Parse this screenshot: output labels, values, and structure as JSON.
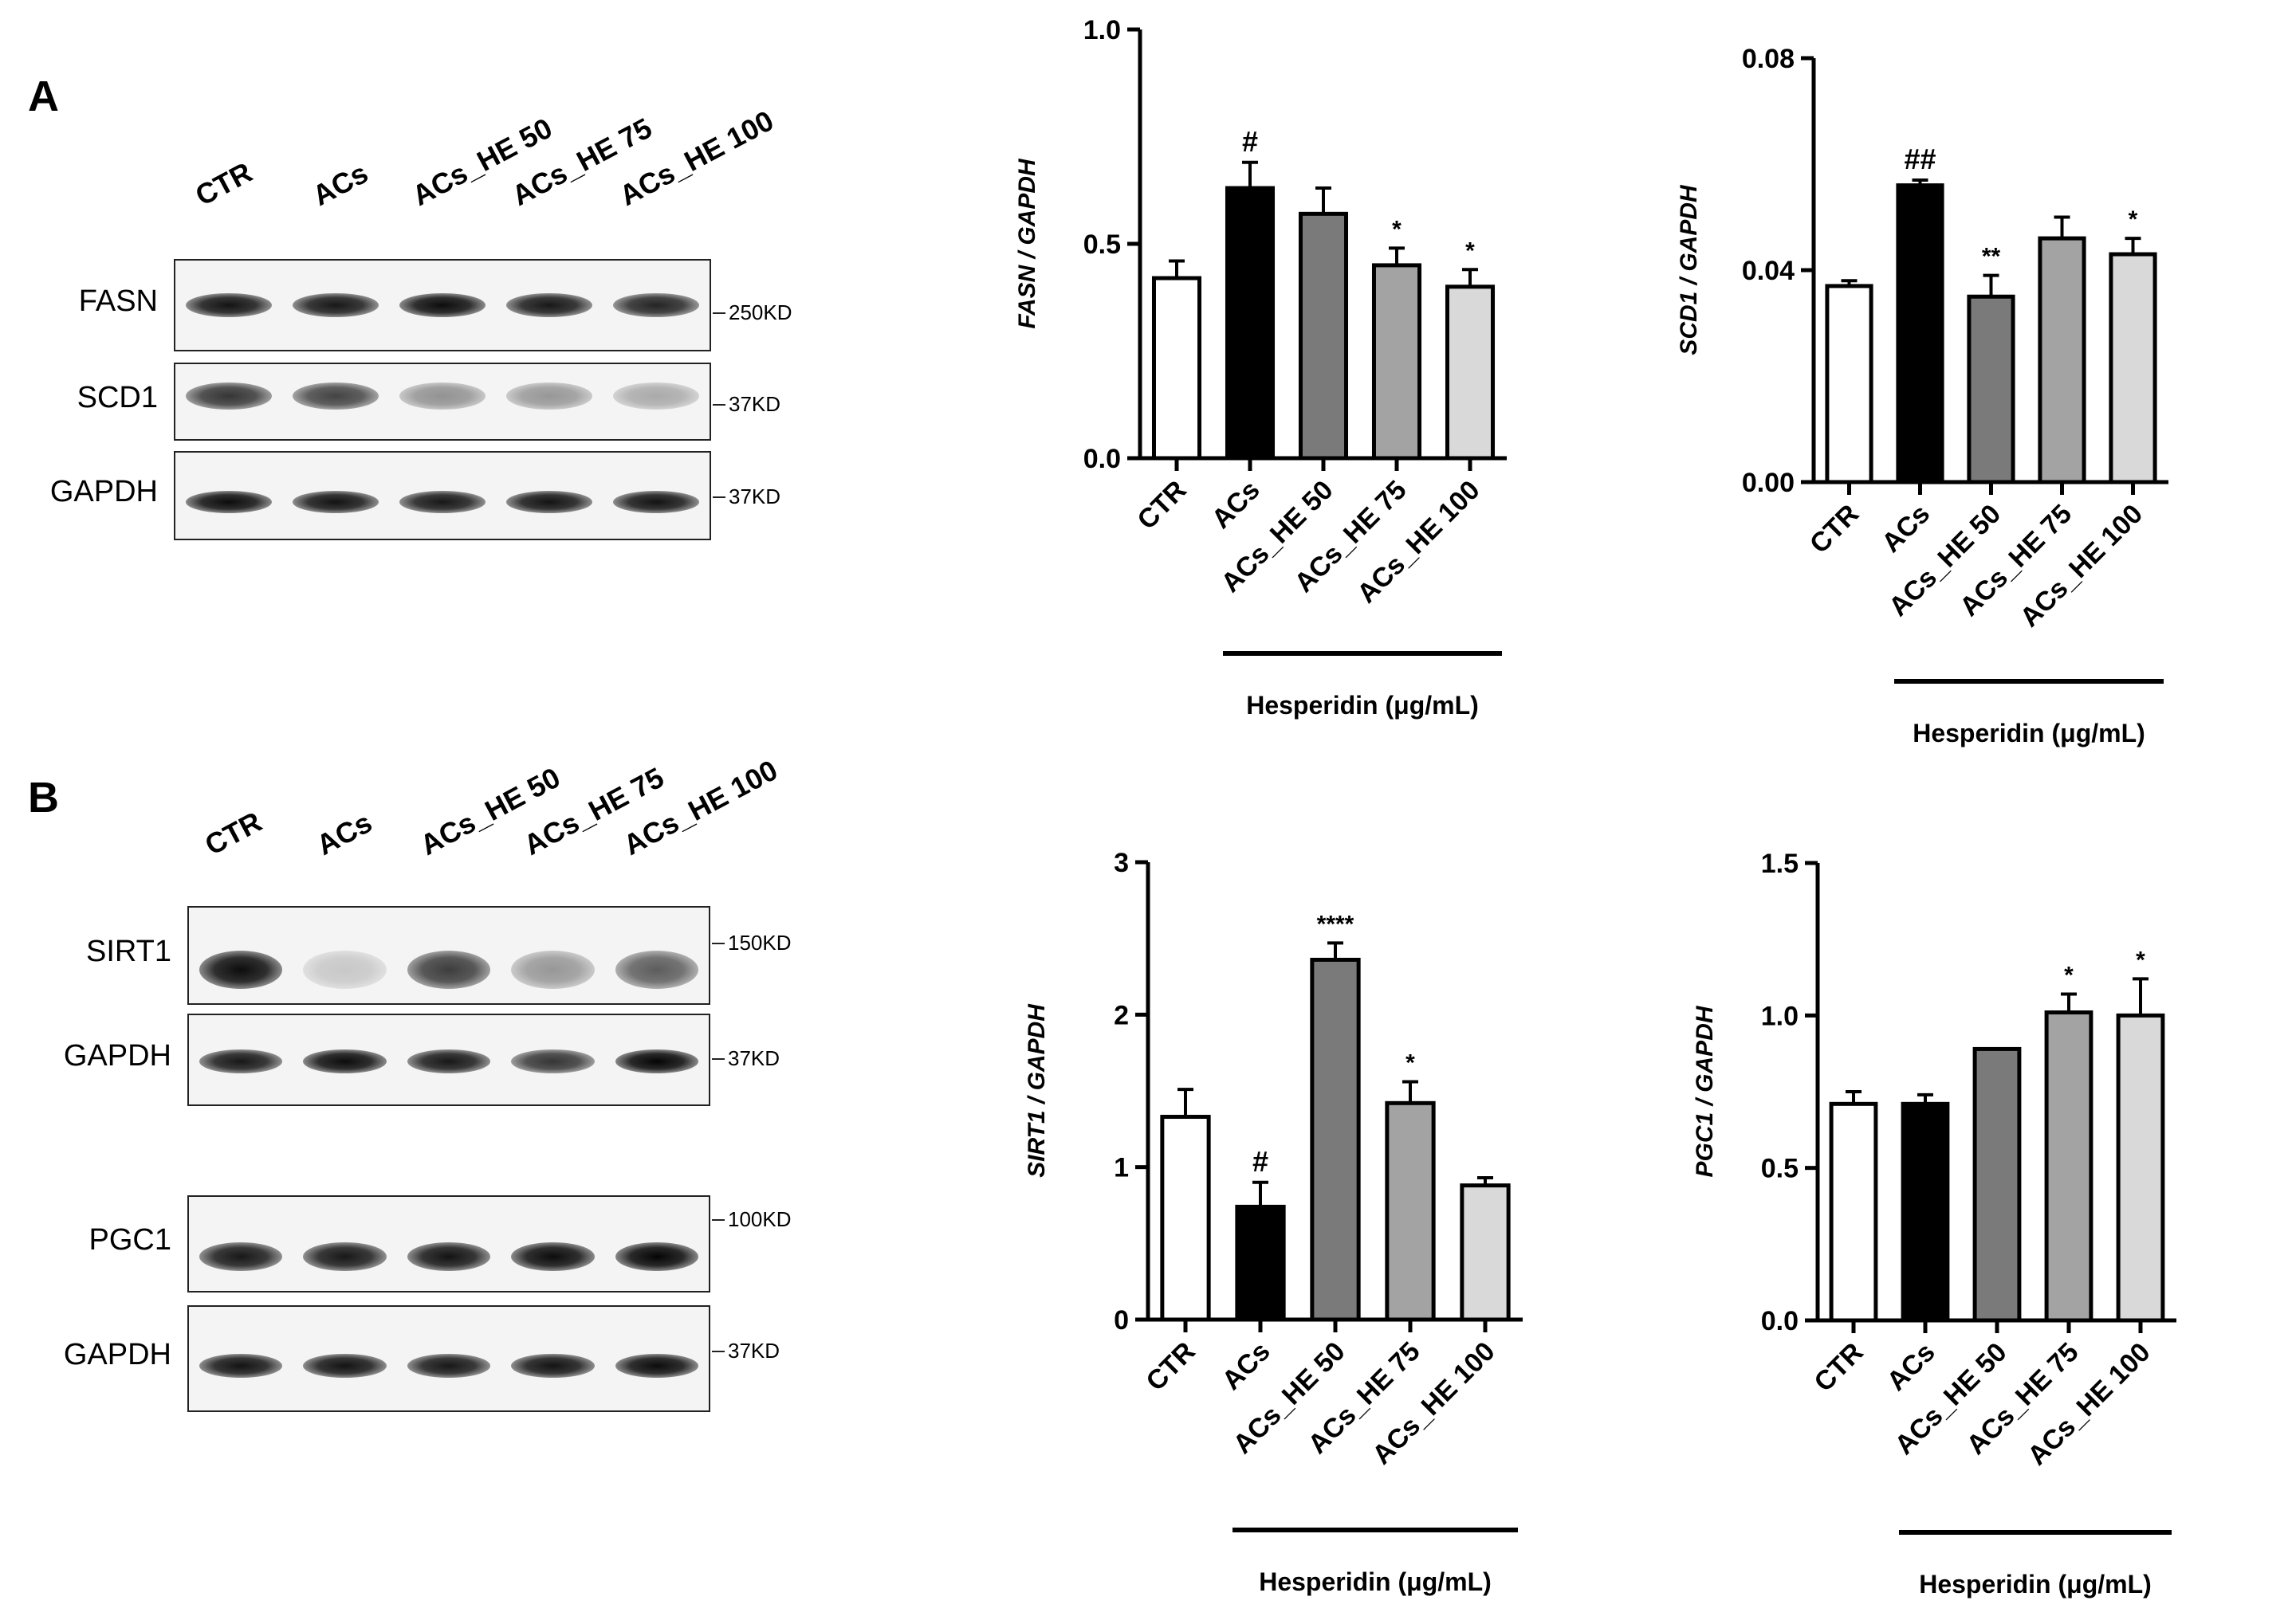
{
  "panels": [
    {
      "letter": "A",
      "lanes": [
        "CTR",
        "ACs",
        "ACs_HE 50",
        "ACs_HE 75",
        "ACs_HE 100"
      ],
      "blots": [
        {
          "protein": "FASN",
          "mw": "250KD",
          "intensity": [
            0.92,
            0.9,
            0.95,
            0.9,
            0.85
          ]
        },
        {
          "protein": "SCD1",
          "mw": "37KD",
          "intensity": [
            0.78,
            0.72,
            0.4,
            0.38,
            0.3
          ]
        },
        {
          "protein": "GAPDH",
          "mw": "37KD",
          "intensity": [
            0.95,
            0.92,
            0.9,
            0.92,
            0.92
          ]
        }
      ]
    },
    {
      "letter": "B",
      "lanes": [
        "CTR",
        "ACs",
        "ACs_HE 50",
        "ACs_HE 75",
        "ACs_HE 100"
      ],
      "blots": [
        {
          "protein": "SIRT1",
          "mw": "150KD",
          "intensity": [
            0.95,
            0.18,
            0.75,
            0.38,
            0.62
          ]
        },
        {
          "protein": "GAPDH",
          "mw": "37KD",
          "intensity": [
            0.9,
            0.95,
            0.9,
            0.78,
            0.98
          ]
        },
        {
          "protein": "PGC1",
          "mw": "100KD",
          "intensity": [
            0.9,
            0.9,
            0.92,
            0.95,
            0.98
          ]
        },
        {
          "protein": "GAPDH",
          "mw": "37KD",
          "intensity": [
            0.92,
            0.92,
            0.9,
            0.92,
            0.95
          ]
        }
      ]
    }
  ],
  "chart_data": [
    {
      "type": "bar",
      "ylabel": "FASN / GAPDH",
      "categories": [
        "CTR",
        "ACs",
        "ACs_HE 50",
        "ACs_HE 75",
        "ACs_HE 100"
      ],
      "values": [
        0.42,
        0.63,
        0.57,
        0.45,
        0.4
      ],
      "errors": [
        0.04,
        0.06,
        0.06,
        0.04,
        0.04
      ],
      "annotations": [
        "",
        "#",
        "",
        "*",
        "*"
      ],
      "bar_colors": [
        "#ffffff",
        "#000000",
        "#7a7a7a",
        "#a3a3a3",
        "#d9d9d9"
      ],
      "ylim": [
        0,
        1.0
      ],
      "yticks": [
        "0.0",
        "0.5",
        "1.0"
      ],
      "group_label": "Hesperidin (μg/mL)"
    },
    {
      "type": "bar",
      "ylabel": "SCD1 / GAPDH",
      "categories": [
        "CTR",
        "ACs",
        "ACs_HE 50",
        "ACs_HE 75",
        "ACs_HE 100"
      ],
      "values": [
        0.037,
        0.056,
        0.035,
        0.046,
        0.043
      ],
      "errors": [
        0.001,
        0.001,
        0.004,
        0.004,
        0.003
      ],
      "annotations": [
        "",
        "##",
        "**",
        "",
        "*"
      ],
      "bar_colors": [
        "#ffffff",
        "#000000",
        "#7a7a7a",
        "#a3a3a3",
        "#d9d9d9"
      ],
      "ylim": [
        0,
        0.08
      ],
      "yticks": [
        "0.00",
        "0.04",
        "0.08"
      ],
      "group_label": "Hesperidin (μg/mL)"
    },
    {
      "type": "bar",
      "ylabel": "SIRT1 / GAPDH",
      "categories": [
        "CTR",
        "ACs",
        "ACs_HE 50",
        "ACs_HE 75",
        "ACs_HE 100"
      ],
      "values": [
        1.33,
        0.74,
        2.36,
        1.42,
        0.88
      ],
      "errors": [
        0.18,
        0.16,
        0.11,
        0.14,
        0.05
      ],
      "annotations": [
        "",
        "#",
        "****",
        "*",
        ""
      ],
      "bar_colors": [
        "#ffffff",
        "#000000",
        "#7a7a7a",
        "#a3a3a3",
        "#d9d9d9"
      ],
      "ylim": [
        0,
        3
      ],
      "yticks": [
        "0",
        "1",
        "2",
        "3"
      ],
      "group_label": "Hesperidin (μg/mL)"
    },
    {
      "type": "bar",
      "ylabel": "PGC1 / GAPDH",
      "categories": [
        "CTR",
        "ACs",
        "ACs_HE 50",
        "ACs_HE 75",
        "ACs_HE 100"
      ],
      "values": [
        0.71,
        0.71,
        0.89,
        1.01,
        1.0
      ],
      "errors": [
        0.04,
        0.03,
        0.0,
        0.06,
        0.12
      ],
      "annotations": [
        "",
        "",
        "",
        "*",
        "*"
      ],
      "bar_colors": [
        "#ffffff",
        "#000000",
        "#7a7a7a",
        "#a3a3a3",
        "#d9d9d9"
      ],
      "ylim": [
        0,
        1.5
      ],
      "yticks": [
        "0.0",
        "0.5",
        "1.0",
        "1.5"
      ],
      "group_label": "Hesperidin (μg/mL)"
    }
  ]
}
